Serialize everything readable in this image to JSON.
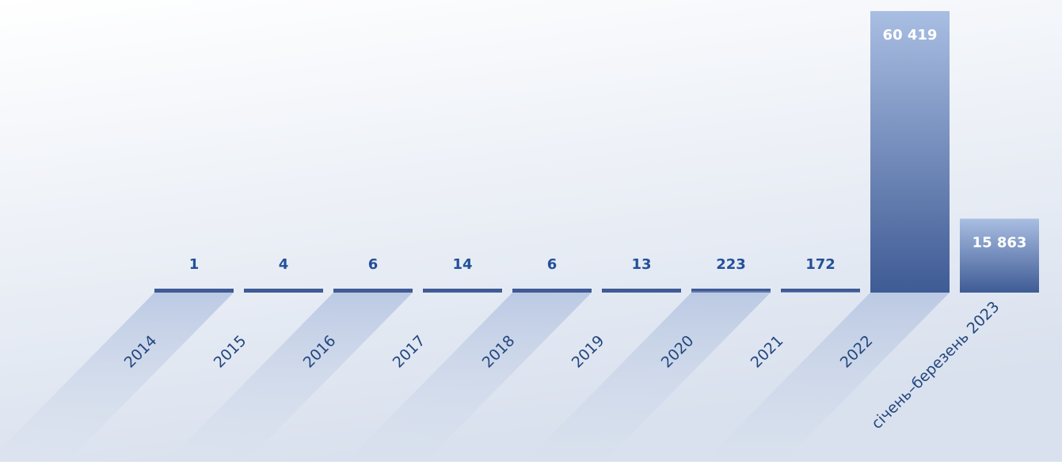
{
  "chart_data": {
    "type": "bar",
    "categories": [
      "2014",
      "2015",
      "2016",
      "2017",
      "2018",
      "2019",
      "2020",
      "2021",
      "2022",
      "січень–березень 2023"
    ],
    "values": [
      1,
      4,
      6,
      14,
      6,
      13,
      223,
      172,
      60419,
      15863
    ],
    "value_labels": [
      "1",
      "4",
      "6",
      "14",
      "6",
      "13",
      "223",
      "172",
      "60 419",
      "15 863"
    ],
    "color": "#3f5b95"
  }
}
